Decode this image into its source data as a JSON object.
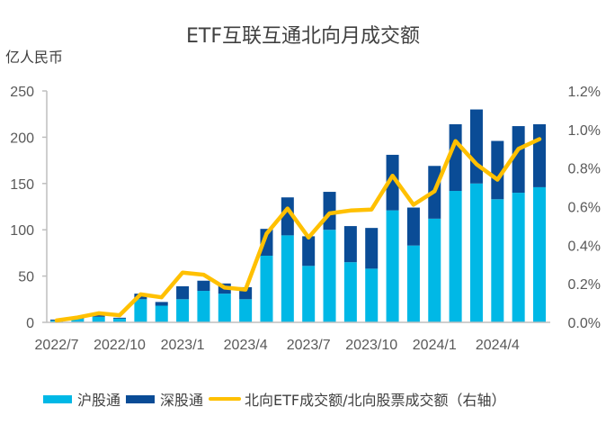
{
  "title": "ETF互联互通北向月成交额",
  "y_unit": "亿人民币",
  "colors": {
    "sh": "#00B8E6",
    "sz": "#0A4C96",
    "ratio": "#FFC000",
    "axis": "#BFBFBF"
  },
  "legend": {
    "sh": "沪股通",
    "sz": "深股通",
    "ratio": "北向ETF成交额/北向股票成交额（右轴）"
  },
  "chart_data": {
    "type": "bar",
    "title": "ETF互联互通北向月成交额",
    "xlabel": "",
    "ylabel": "亿人民币",
    "y2label": "北向ETF成交额/北向股票成交额（右轴）",
    "ylim": [
      0,
      250
    ],
    "y2lim": [
      0,
      1.2
    ],
    "yticks": [
      0,
      50,
      100,
      150,
      200,
      250
    ],
    "y2ticks": [
      "0.0%",
      "0.2%",
      "0.4%",
      "0.6%",
      "0.8%",
      "1.0%",
      "1.2%"
    ],
    "grid": false,
    "legend_position": "bottom",
    "stacked": true,
    "categories": [
      "2022/7",
      "2022/8",
      "2022/9",
      "2022/10",
      "2022/11",
      "2022/12",
      "2023/1",
      "2023/2",
      "2023/3",
      "2023/4",
      "2023/5",
      "2023/6",
      "2023/7",
      "2023/8",
      "2023/9",
      "2023/10",
      "2023/11",
      "2023/12",
      "2024/1",
      "2024/2",
      "2024/3",
      "2024/4",
      "2024/5",
      "2024/6"
    ],
    "x_tick_labels": [
      "2022/7",
      "2022/10",
      "2023/1",
      "2023/4",
      "2023/7",
      "2023/10",
      "2024/1",
      "2024/4"
    ],
    "series": [
      {
        "name": "沪股通",
        "type": "bar",
        "axis": "left",
        "values": [
          2,
          4,
          6,
          4,
          25,
          18,
          25,
          34,
          31,
          25,
          72,
          94,
          61,
          100,
          65,
          58,
          121,
          83,
          112,
          142,
          150,
          133,
          140,
          146
        ]
      },
      {
        "name": "深股通",
        "type": "bar",
        "axis": "left",
        "values": [
          1,
          1,
          2,
          1,
          6,
          4,
          14,
          11,
          11,
          13,
          29,
          41,
          32,
          41,
          39,
          44,
          60,
          41,
          57,
          72,
          80,
          63,
          72,
          68
        ]
      },
      {
        "name": "北向ETF成交额/北向股票成交额（右轴）",
        "type": "line",
        "axis": "right",
        "unit": "%",
        "values": [
          0.01,
          0.025,
          0.047,
          0.037,
          0.145,
          0.13,
          0.258,
          0.247,
          0.18,
          0.17,
          0.46,
          0.59,
          0.44,
          0.565,
          0.58,
          0.585,
          0.76,
          0.61,
          0.68,
          0.94,
          0.82,
          0.74,
          0.9,
          0.95
        ]
      }
    ]
  }
}
